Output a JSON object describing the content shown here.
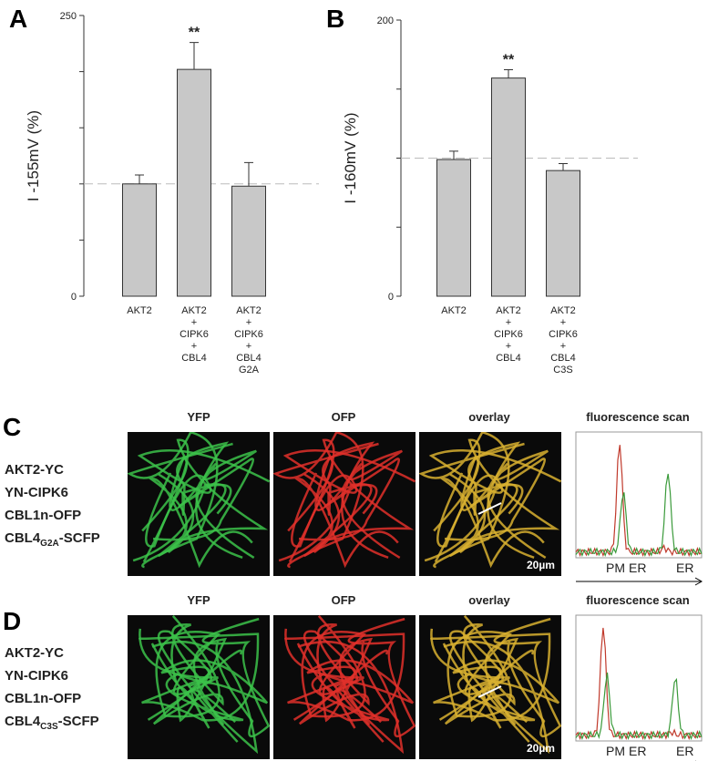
{
  "chart_data": [
    {
      "type": "bar",
      "label": "A",
      "ylabel": "I -155mV (%)",
      "categories": [
        [
          "AKT2"
        ],
        [
          "AKT2",
          "+",
          "CIPK6",
          "+",
          "CBL4"
        ],
        [
          "AKT2",
          "+",
          "CIPK6",
          "+",
          "CBL4",
          "G2A"
        ]
      ],
      "values": [
        100,
        202,
        98
      ],
      "errors": [
        8,
        24,
        21
      ],
      "color": "#c8c8c8",
      "ylim": [
        0,
        250
      ],
      "yticks": [
        0,
        250
      ],
      "minor_yticks": [
        50,
        100,
        150,
        200
      ],
      "reference_line": 100,
      "annotations": [
        {
          "index": 1,
          "text": "**"
        }
      ]
    },
    {
      "type": "bar",
      "label": "B",
      "ylabel": "I -160mV (%)",
      "categories": [
        [
          "AKT2"
        ],
        [
          "AKT2",
          "+",
          "CIPK6",
          "+",
          "CBL4"
        ],
        [
          "AKT2",
          "+",
          "CIPK6",
          "+",
          "CBL4",
          "C3S"
        ]
      ],
      "values": [
        99,
        158,
        91
      ],
      "errors": [
        6,
        6,
        5
      ],
      "color": "#c8c8c8",
      "ylim": [
        0,
        200
      ],
      "yticks": [
        0,
        200
      ],
      "minor_yticks": [
        50,
        100,
        150
      ],
      "reference_line": 100,
      "annotations": [
        {
          "index": 1,
          "text": "**"
        }
      ]
    }
  ],
  "panels": [
    {
      "label": "C",
      "headers": [
        "YFP",
        "OFP",
        "overlay",
        "fluorescence scan"
      ],
      "constructs": [
        "AKT2-YC",
        "YN-CIPK6",
        "CBL1n-OFP",
        {
          "text": "CBL4",
          "sub": "G2A",
          "after": "-SCFP"
        }
      ],
      "scale_bar": "20µm",
      "scan_labels": [
        "PM",
        "ER",
        "ER"
      ]
    },
    {
      "label": "D",
      "headers": [
        "YFP",
        "OFP",
        "overlay",
        "fluorescence scan"
      ],
      "constructs": [
        "AKT2-YC",
        "YN-CIPK6",
        "CBL1n-OFP",
        {
          "text": "CBL4",
          "sub": "C3S",
          "after": "-SCFP"
        }
      ],
      "scale_bar": "20µm",
      "scan_labels": [
        "PM",
        "ER",
        "ER"
      ]
    }
  ]
}
